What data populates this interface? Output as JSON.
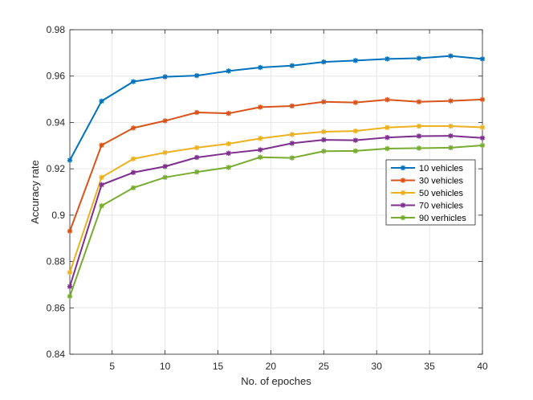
{
  "chart_data": {
    "type": "line",
    "title": "",
    "xlabel": "No. of epoches",
    "ylabel": "Accuracy rate",
    "xlim": [
      1,
      40
    ],
    "ylim": [
      0.84,
      0.98
    ],
    "xticks": [
      5,
      10,
      15,
      20,
      25,
      30,
      35,
      40
    ],
    "yticks": [
      0.84,
      0.86,
      0.88,
      0.9,
      0.92,
      0.94,
      0.96,
      0.98
    ],
    "ytick_labels": [
      "0.84",
      "0.86",
      "0.88",
      "0.9",
      "0.92",
      "0.94",
      "0.96",
      "0.98"
    ],
    "grid": true,
    "legend_position": "right",
    "x": [
      1,
      4,
      7,
      10,
      13,
      16,
      19,
      22,
      25,
      28,
      31,
      34,
      37,
      40
    ],
    "series": [
      {
        "name": "10 vehicles",
        "color": "#0072BD",
        "marker": "star",
        "values": [
          0.9237,
          0.9492,
          0.9576,
          0.9597,
          0.9602,
          0.9622,
          0.9637,
          0.9645,
          0.9661,
          0.9667,
          0.9674,
          0.9677,
          0.9687,
          0.9674
        ]
      },
      {
        "name": "30 vehicles",
        "color": "#D95319",
        "marker": "star",
        "values": [
          0.8931,
          0.9302,
          0.9376,
          0.9407,
          0.9443,
          0.9439,
          0.9466,
          0.9471,
          0.9489,
          0.9486,
          0.9498,
          0.9489,
          0.9493,
          0.9499
        ]
      },
      {
        "name": "50 vehicles",
        "color": "#EDB120",
        "marker": "star",
        "values": [
          0.8753,
          0.9163,
          0.9243,
          0.927,
          0.9291,
          0.9308,
          0.9331,
          0.9348,
          0.936,
          0.9363,
          0.9378,
          0.9384,
          0.9384,
          0.9379
        ]
      },
      {
        "name": "70 vehicles",
        "color": "#7E2F8E",
        "marker": "star",
        "values": [
          0.8692,
          0.9131,
          0.9184,
          0.921,
          0.9249,
          0.9267,
          0.9282,
          0.931,
          0.9325,
          0.9323,
          0.9335,
          0.9341,
          0.9342,
          0.9333
        ]
      },
      {
        "name": "90 verhicles",
        "color": "#77AC30",
        "marker": "star",
        "values": [
          0.865,
          0.904,
          0.9118,
          0.9163,
          0.9186,
          0.9206,
          0.925,
          0.9247,
          0.9276,
          0.9277,
          0.9287,
          0.9289,
          0.9291,
          0.9301
        ]
      }
    ]
  }
}
